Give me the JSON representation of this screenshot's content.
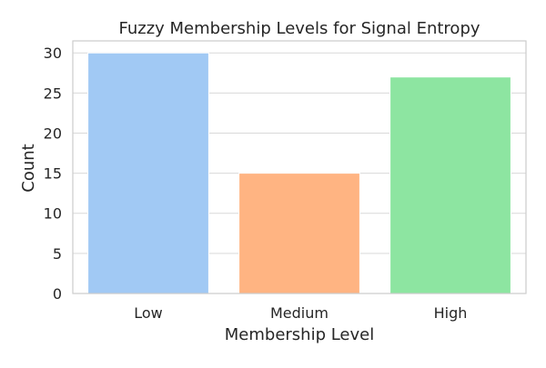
{
  "chart_data": {
    "type": "bar",
    "title": "Fuzzy Membership Levels for Signal Entropy",
    "xlabel": "Membership Level",
    "ylabel": "Count",
    "categories": [
      "Low",
      "Medium",
      "High"
    ],
    "values": [
      30,
      15,
      27
    ],
    "ylim": [
      0,
      31.5
    ],
    "yticks": [
      0,
      5,
      10,
      15,
      20,
      25,
      30
    ],
    "grid": true,
    "colors": [
      "#a1c9f4",
      "#ffb482",
      "#8de5a1"
    ]
  }
}
